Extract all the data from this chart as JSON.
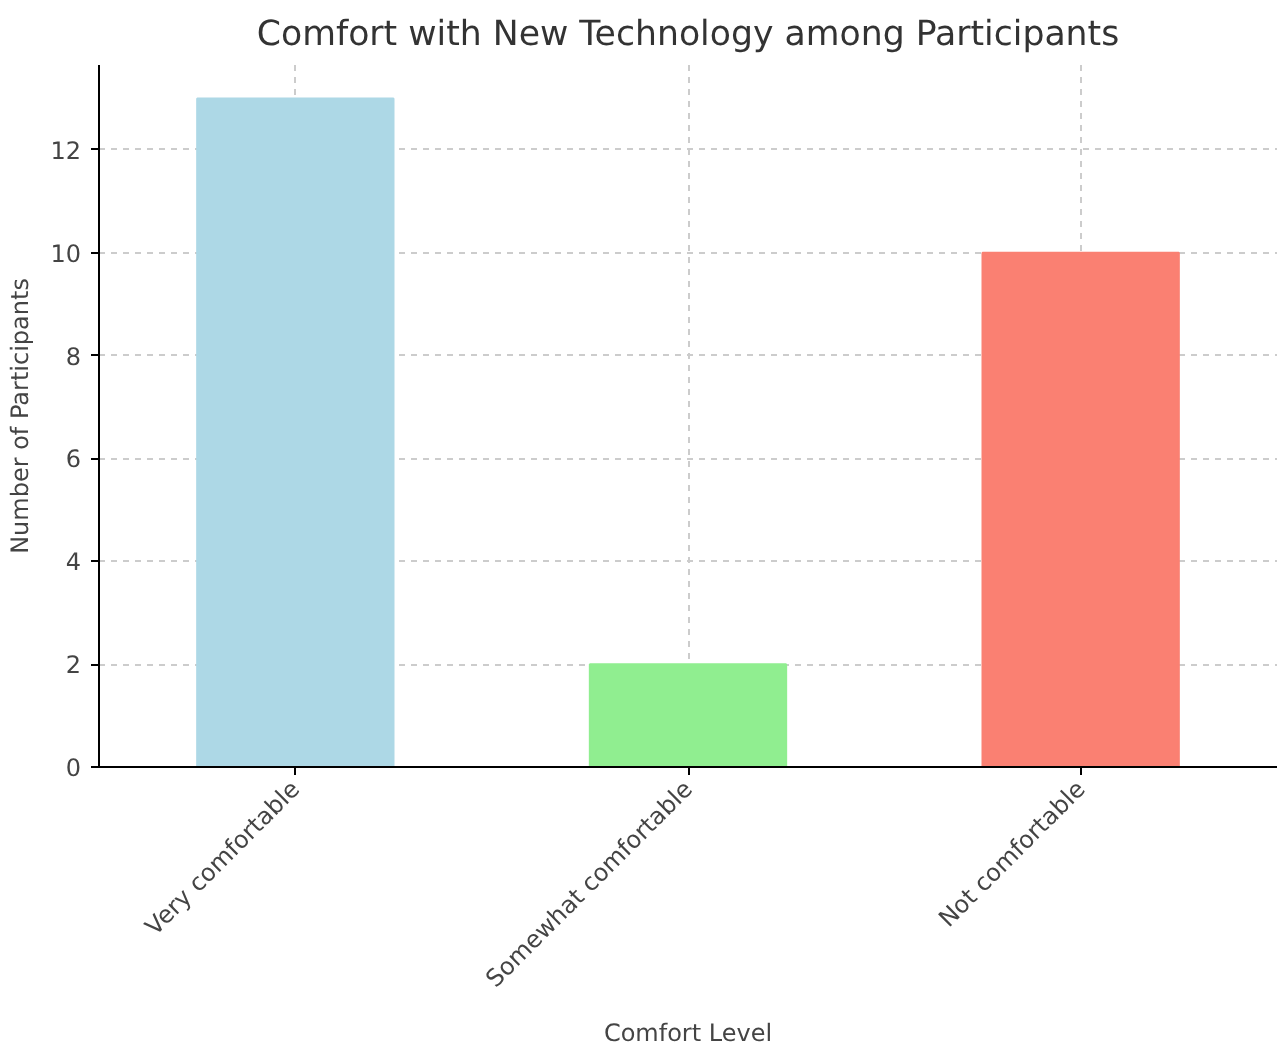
{
  "chart_data": {
    "type": "bar",
    "title": "Comfort with New Technology among Participants",
    "xlabel": "Comfort Level",
    "ylabel": "Number of Participants",
    "categories": [
      "Very comfortable",
      "Somewhat comfortable",
      "Not comfortable"
    ],
    "values": [
      13,
      2,
      10
    ],
    "colors": [
      "#add8e6",
      "#90ee90",
      "#fa8072"
    ],
    "ylim": [
      0,
      13.65
    ],
    "yticks": [
      0,
      2,
      4,
      6,
      8,
      10,
      12
    ],
    "grid": true
  }
}
